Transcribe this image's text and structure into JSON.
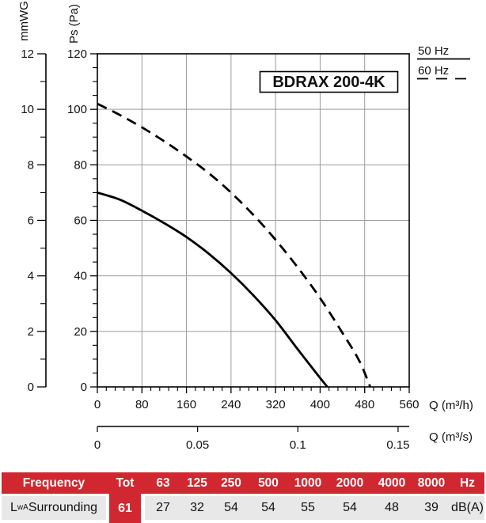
{
  "chart_data": {
    "type": "line",
    "title": "BDRAX 200-4K",
    "xlabel": "Q (m³/h)",
    "x2label": "Q (m³/s)",
    "ylabel": "Ps (Pa)",
    "y2label": "mmWG",
    "xlim": [
      0,
      560
    ],
    "ylim": [
      0,
      120
    ],
    "y2lim": [
      0,
      12
    ],
    "grid": true,
    "legend_position": "top-right-outside",
    "xticks": [
      0,
      80,
      160,
      240,
      320,
      400,
      480,
      560
    ],
    "xtick_minor_step": 16,
    "x2ticks": [
      "0",
      "0.05",
      "0.1",
      "0.15"
    ],
    "x2tick_values": [
      0,
      0.05,
      0.1,
      0.15
    ],
    "yticks": [
      0,
      20,
      40,
      60,
      80,
      100,
      120
    ],
    "ytick_minor_step": 5,
    "y2ticks": [
      0,
      2,
      4,
      6,
      8,
      10,
      12
    ],
    "y2tick_minor_step": 1,
    "series": [
      {
        "name": "50 Hz",
        "style": "solid",
        "points": [
          [
            0,
            70
          ],
          [
            40,
            67.5
          ],
          [
            80,
            63.5
          ],
          [
            120,
            59
          ],
          [
            160,
            54
          ],
          [
            200,
            48
          ],
          [
            240,
            41
          ],
          [
            280,
            33
          ],
          [
            320,
            24
          ],
          [
            360,
            13.5
          ],
          [
            395,
            4.5
          ],
          [
            413,
            0
          ]
        ]
      },
      {
        "name": "60 Hz",
        "style": "dashed",
        "points": [
          [
            0,
            102
          ],
          [
            40,
            98
          ],
          [
            80,
            93.5
          ],
          [
            120,
            88.5
          ],
          [
            160,
            83
          ],
          [
            200,
            77
          ],
          [
            240,
            70
          ],
          [
            280,
            62
          ],
          [
            320,
            53
          ],
          [
            360,
            43
          ],
          [
            400,
            32
          ],
          [
            440,
            19.5
          ],
          [
            470,
            9.5
          ],
          [
            490,
            0
          ]
        ]
      }
    ]
  },
  "table": {
    "header": [
      "Frequency",
      "Tot",
      "63",
      "125",
      "250",
      "500",
      "1000",
      "2000",
      "4000",
      "8000",
      "Hz"
    ],
    "row_label_l": "L",
    "row_label_sub": "wA",
    "row_label_text": " Surrounding",
    "tot_value": "61",
    "values": [
      "27",
      "32",
      "54",
      "54",
      "55",
      "54",
      "48",
      "39"
    ],
    "unit": "dB(A)"
  },
  "colors": {
    "red": "#d12730",
    "gray": "#e8e8e8",
    "grid": "#9a9a9a",
    "line": "#000000"
  }
}
